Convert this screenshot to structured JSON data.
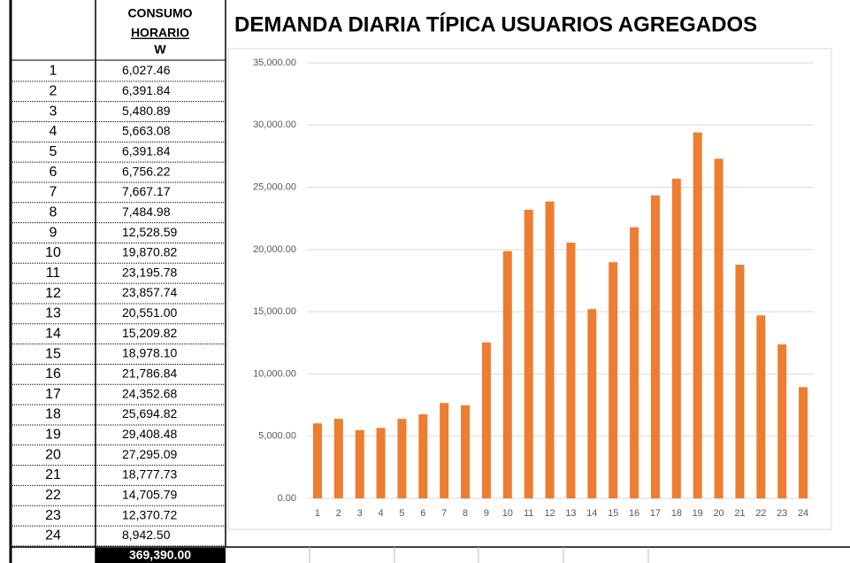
{
  "table": {
    "header_lines": [
      "CONSUMO",
      "HORARIO"
    ],
    "unit": "W",
    "total": "369,390.00"
  },
  "chart_data": {
    "type": "bar",
    "title": "DEMANDA DIARIA TÍPICA USUARIOS AGREGADOS",
    "categories": [
      "1",
      "2",
      "3",
      "4",
      "5",
      "6",
      "7",
      "8",
      "9",
      "10",
      "11",
      "12",
      "13",
      "14",
      "15",
      "16",
      "17",
      "18",
      "19",
      "20",
      "21",
      "22",
      "23",
      "24"
    ],
    "values": [
      6027.46,
      6391.84,
      5480.89,
      5663.08,
      6391.84,
      6756.22,
      7667.17,
      7484.98,
      12528.59,
      19870.82,
      23195.78,
      23857.74,
      20551.0,
      15209.82,
      18978.1,
      21786.84,
      24352.68,
      25694.82,
      29408.48,
      27295.09,
      18777.73,
      14705.79,
      12370.72,
      8942.5
    ],
    "value_labels": [
      "6,027.46",
      "6,391.84",
      "5,480.89",
      "5,663.08",
      "6,391.84",
      "6,756.22",
      "7,667.17",
      "7,484.98",
      "12,528.59",
      "19,870.82",
      "23,195.78",
      "23,857.74",
      "20,551.00",
      "15,209.82",
      "18,978.10",
      "21,786.84",
      "24,352.68",
      "25,694.82",
      "29,408.48",
      "27,295.09",
      "18,777.73",
      "14,705.79",
      "12,370.72",
      "8,942.50"
    ],
    "color": "#ed7d31",
    "ylim": [
      0,
      35000
    ],
    "yticks": [
      {
        "value": 0,
        "label": "0.00"
      },
      {
        "value": 5000,
        "label": "5,000.00"
      },
      {
        "value": 10000,
        "label": "10,000.00"
      },
      {
        "value": 15000,
        "label": "15,000.00"
      },
      {
        "value": 20000,
        "label": "20,000.00"
      },
      {
        "value": 25000,
        "label": "25,000.00"
      },
      {
        "value": 30000,
        "label": "30,000.00"
      },
      {
        "value": 35000,
        "label": "35,000.00"
      }
    ],
    "grid": true
  }
}
